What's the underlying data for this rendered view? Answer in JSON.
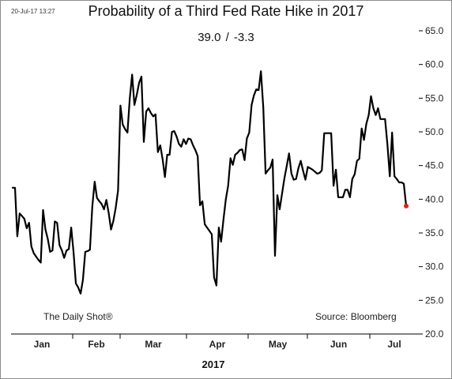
{
  "header": {
    "timestamp": "20-Jul-17 13:27",
    "title": "Probability of a Third Fed Rate Hike in 2017",
    "subtitle": "39.0  /  -3.3"
  },
  "footer": {
    "credit": "The Daily Shot®",
    "source": "Source: Bloomberg",
    "xlabel": "2017"
  },
  "chart_data": {
    "type": "line",
    "title": "Probability of a Third Fed Rate Hike in 2017",
    "subtitle": "39.0  /  -3.3",
    "xlabel": "2017",
    "ylabel": "",
    "ylim": [
      20,
      65
    ],
    "yticks": [
      "20.0",
      "25.0",
      "30.0",
      "35.0",
      "40.0",
      "45.0",
      "50.0",
      "55.0",
      "60.0",
      "65.0"
    ],
    "ytick_values": [
      20,
      25,
      30,
      35,
      40,
      45,
      50,
      55,
      60,
      65
    ],
    "axis_side": "right",
    "grid": false,
    "months": [
      "Jan",
      "Feb",
      "Mar",
      "Apr",
      "May",
      "Jun",
      "Jul"
    ],
    "line_color": "#000000",
    "last_point_color": "#e02020",
    "last_value": 39.0,
    "series": [
      {
        "name": "",
        "values": [
          41.7,
          41.7,
          34.5,
          37.9,
          37.5,
          37.1,
          35.7,
          36.5,
          33.0,
          32.0,
          31.5,
          31.0,
          30.6,
          38.4,
          35.5,
          34.1,
          32.2,
          32.4,
          36.7,
          36.5,
          33.2,
          32.4,
          31.3,
          32.4,
          32.6,
          35.8,
          32.1,
          27.5,
          26.9,
          26.0,
          28.0,
          32.2,
          32.3,
          32.5,
          38.9,
          42.6,
          40.2,
          39.7,
          39.3,
          38.5,
          39.9,
          38.0,
          35.5,
          36.8,
          38.7,
          41.3,
          53.9,
          51.1,
          50.4,
          49.9,
          54.9,
          58.5,
          54.0,
          55.5,
          57.3,
          58.2,
          48.5,
          53.0,
          53.5,
          52.8,
          52.3,
          52.6,
          47.0,
          48.0,
          46.0,
          43.3,
          46.6,
          46.6,
          50.0,
          50.1,
          49.3,
          48.2,
          47.8,
          48.9,
          48.2,
          49.0,
          48.9,
          48.0,
          47.3,
          46.4,
          39.1,
          39.7,
          36.3,
          35.8,
          35.3,
          34.8,
          28.4,
          27.2,
          35.8,
          33.7,
          37.0,
          40.0,
          42.0,
          46.1,
          45.1,
          46.6,
          46.9,
          47.3,
          47.4,
          45.8,
          49.0,
          49.9,
          54.0,
          55.4,
          56.3,
          56.2,
          59.0,
          53.6,
          43.8,
          44.3,
          44.7,
          45.9,
          31.6,
          40.6,
          38.5,
          40.8,
          43.1,
          44.9,
          46.8,
          43.8,
          42.9,
          43.0,
          44.6,
          45.7,
          44.2,
          42.9,
          44.8,
          44.6,
          44.4,
          44.1,
          43.8,
          43.9,
          44.3,
          49.8,
          49.8,
          49.8,
          49.8,
          42.0,
          44.4,
          40.3,
          40.3,
          40.3,
          41.4,
          41.4,
          40.3,
          43.0,
          43.7,
          45.7,
          46.0,
          50.5,
          48.8,
          51.2,
          52.5,
          55.3,
          53.5,
          52.5,
          53.5,
          51.9,
          51.9,
          51.9,
          48.1,
          43.4,
          49.9,
          43.4,
          43.0,
          42.5,
          42.5,
          42.3,
          39.0
        ]
      }
    ]
  }
}
